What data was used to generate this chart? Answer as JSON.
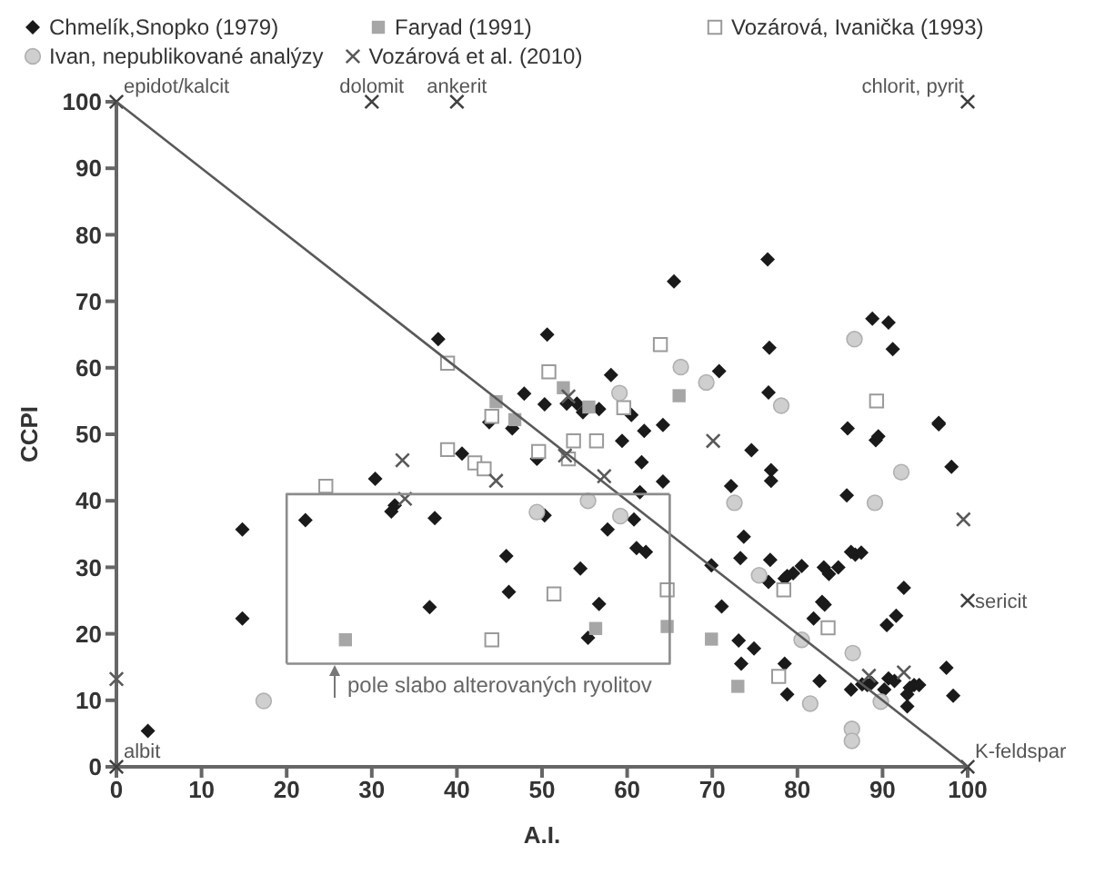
{
  "chart_data": {
    "type": "scatter",
    "xlabel": "A.I.",
    "ylabel": "CCPI",
    "xlim": [
      0,
      100
    ],
    "ylim": [
      0,
      100
    ],
    "xticks": [
      0,
      10,
      20,
      30,
      40,
      50,
      60,
      70,
      80,
      90,
      100
    ],
    "yticks": [
      0,
      10,
      20,
      30,
      40,
      50,
      60,
      70,
      80,
      90,
      100
    ],
    "legend": "top",
    "series": [
      {
        "name": "Chmelík,Snopko (1979)",
        "color": "#1a1a1a",
        "marker": "diamond",
        "x": [
          37.8,
          50.6,
          47.9,
          50.3,
          43.8,
          76.5,
          65.5,
          88.8,
          90.7,
          76.7,
          91.2,
          70.8,
          58.1,
          52.9,
          54.1,
          54.8,
          56.7,
          60.5,
          76.6,
          96.6,
          46.5,
          40.6,
          49.4,
          30.4,
          32.7,
          32.3,
          22.2,
          37.4,
          14.8,
          50.3,
          45.8,
          46.1,
          36.8,
          14.8,
          3.7,
          59.4,
          62.0,
          64.2,
          85.9,
          89.2,
          89.5,
          96.6,
          61.7,
          64.2,
          61.5,
          74.6,
          76.9,
          76.9,
          98.1,
          72.2,
          85.8,
          57.7,
          60.8,
          61.1,
          62.2,
          73.7,
          73.3,
          76.8,
          86.3,
          86.8,
          87.5,
          80.5,
          83.1,
          83.7,
          84.8,
          79.5,
          78.8,
          78.5,
          76.6,
          69.9,
          92.5,
          54.5,
          71.1,
          83.2,
          82.9,
          81.9,
          91.6,
          90.5,
          56.7,
          55.4,
          73.1,
          74.9,
          73.4,
          78.5,
          78.8,
          82.6,
          86.3,
          87.6,
          88.2,
          88.7,
          90.7,
          91.4,
          90.2,
          93.2,
          93.7,
          94.3,
          92.9,
          92.9,
          97.5,
          98.3
        ],
        "values": [
          64.3,
          65.0,
          56.1,
          54.5,
          51.8,
          76.3,
          73.0,
          67.4,
          66.8,
          63.0,
          62.8,
          59.5,
          58.9,
          54.6,
          54.6,
          53.3,
          53.8,
          52.9,
          56.3,
          51.5,
          50.9,
          47.1,
          46.3,
          43.3,
          39.3,
          38.4,
          37.1,
          37.4,
          35.7,
          37.8,
          31.7,
          26.3,
          24.0,
          22.3,
          5.4,
          49.0,
          50.5,
          51.4,
          50.9,
          49.1,
          49.7,
          51.7,
          45.8,
          42.9,
          41.3,
          47.6,
          44.6,
          43.0,
          45.1,
          42.2,
          40.8,
          35.7,
          37.2,
          32.9,
          32.3,
          34.6,
          31.4,
          31.1,
          32.3,
          31.9,
          32.2,
          30.2,
          30.0,
          29.0,
          30.0,
          29.1,
          28.7,
          28.3,
          27.8,
          30.3,
          26.9,
          29.8,
          24.1,
          24.4,
          24.8,
          22.3,
          22.7,
          21.3,
          24.5,
          19.4,
          19.0,
          17.8,
          15.5,
          15.5,
          10.9,
          12.9,
          11.6,
          12.4,
          12.3,
          12.6,
          13.3,
          12.9,
          11.6,
          11.9,
          12.3,
          12.3,
          10.9,
          9.1,
          14.9,
          10.7
        ]
      },
      {
        "name": "Faryad (1991)",
        "color": "#a6a6a6",
        "marker": "square",
        "x": [
          44.6,
          46.8,
          52.5,
          55.5,
          66.1,
          26.9,
          56.3,
          64.7,
          69.9,
          73.0
        ],
        "values": [
          54.9,
          52.2,
          57.0,
          54.1,
          55.8,
          19.1,
          20.8,
          21.1,
          19.2,
          12.1
        ]
      },
      {
        "name": "Vozárová, Ivanička (1993)",
        "color": "#9a9a9a",
        "marker": "square",
        "x": [
          38.9,
          50.8,
          44.1,
          63.9,
          59.6,
          89.3,
          38.9,
          42.1,
          43.2,
          49.6,
          24.6,
          44.1,
          53.7,
          56.4,
          53.1,
          78.4,
          51.4,
          64.7,
          83.6,
          77.8
        ],
        "values": [
          60.7,
          59.4,
          52.7,
          63.5,
          54.0,
          55.0,
          47.7,
          45.7,
          44.8,
          47.4,
          42.2,
          19.1,
          49.0,
          49.0,
          46.3,
          26.6,
          26.0,
          26.6,
          20.9,
          13.6
        ]
      },
      {
        "name": "Ivan, nepublikované analýzy",
        "color": "#cfcfcf",
        "marker": "circle",
        "x": [
          86.7,
          66.3,
          69.3,
          59.1,
          78.1,
          49.4,
          17.3,
          92.2,
          72.6,
          89.1,
          55.4,
          59.2,
          75.5,
          80.5,
          86.5,
          81.5,
          89.8,
          86.4,
          86.4
        ],
        "values": [
          64.3,
          60.1,
          57.8,
          56.2,
          54.3,
          38.3,
          9.9,
          44.3,
          39.7,
          39.7,
          40.0,
          37.7,
          28.8,
          19.1,
          17.1,
          9.5,
          9.8,
          5.7,
          3.9
        ]
      },
      {
        "name": "Vozárová et al. (2010)",
        "color": "#595959",
        "marker": "cross",
        "x": [
          53.1,
          33.6,
          44.6,
          33.9,
          0,
          70.1,
          52.7,
          57.3,
          99.5,
          88.4,
          92.5
        ],
        "values": [
          55.7,
          46.1,
          43.0,
          40.3,
          13.2,
          49.0,
          46.8,
          43.7,
          37.2,
          13.7,
          14.2
        ]
      },
      {
        "color": "#404040",
        "marker": "cross",
        "x": [
          0,
          30,
          40,
          100,
          100,
          100,
          0
        ],
        "values": [
          100,
          100,
          100,
          100,
          25,
          0,
          0
        ]
      },
      {
        "type": "line",
        "color": "#595959",
        "x": [
          0,
          100
        ],
        "values": [
          100,
          0
        ]
      },
      {
        "type": "line",
        "color": "#8c8c8c",
        "x": [
          20,
          65,
          65
        ],
        "values": [
          15.5,
          15.5,
          41
        ]
      },
      {
        "type": "line",
        "color": "#8c8c8c",
        "x": [
          65,
          20,
          20
        ],
        "values": [
          41,
          41,
          15.5
        ]
      }
    ],
    "annotations": [
      {
        "text": "epidot/kalcit",
        "x": 0,
        "y": 100
      },
      {
        "text": "dolomit",
        "x": 30,
        "y": 100
      },
      {
        "text": "ankerit",
        "x": 40,
        "y": 100
      },
      {
        "text": "chlorit, pyrit",
        "x": 100,
        "y": 100
      },
      {
        "text": "sericit",
        "x": 100,
        "y": 25
      },
      {
        "text": "K-feldspar",
        "x": 100,
        "y": 0
      },
      {
        "text": "albit",
        "x": 0,
        "y": 0
      },
      "pole slabo alterovaných ryolitov"
    ]
  }
}
